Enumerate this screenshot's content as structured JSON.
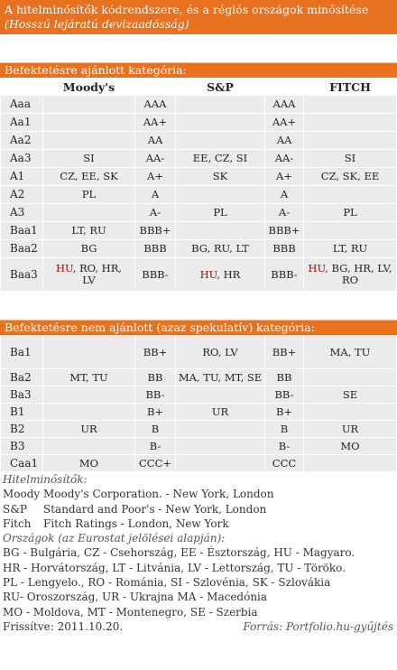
{
  "title": {
    "main": "A hitelminősítők kódrendszere, és a régiós országok minősítése",
    "sub": "(Hosszú lejáratú devizaadósság)"
  },
  "investment": {
    "header": "Befektetésre ajánlott kategória:",
    "columns": [
      "Moody's",
      "S&P",
      "FITCH"
    ],
    "rows": [
      {
        "m": "Aaa",
        "mc": "",
        "s": "AAA",
        "sc": "",
        "f": "AAA",
        "fc": ""
      },
      {
        "m": "Aa1",
        "mc": "",
        "s": "AA+",
        "sc": "",
        "f": "AA+",
        "fc": ""
      },
      {
        "m": "Aa2",
        "mc": "",
        "s": "AA",
        "sc": "",
        "f": "AA",
        "fc": ""
      },
      {
        "m": "Aa3",
        "mc": "SI",
        "s": "AA-",
        "sc": "EE, CZ, SI",
        "f": "AA-",
        "fc": "SI"
      },
      {
        "m": "A1",
        "mc": "CZ, EE, SK",
        "s": "A+",
        "sc": "SK",
        "f": "A+",
        "fc": "CZ, SK, EE"
      },
      {
        "m": "A2",
        "mc": "PL",
        "s": "A",
        "sc": "",
        "f": "A",
        "fc": ""
      },
      {
        "m": "A3",
        "mc": "",
        "s": "A-",
        "sc": "PL",
        "f": "A-",
        "fc": "PL"
      },
      {
        "m": "Baa1",
        "mc": "LT, RU",
        "s": "BBB+",
        "sc": "",
        "f": "BBB+",
        "fc": ""
      },
      {
        "m": "Baa2",
        "mc": "BG",
        "s": "BBB",
        "sc": "BG, RU, LT",
        "f": "BBB",
        "fc": "LT, RU"
      },
      {
        "m": "Baa3",
        "mc_red": "HU",
        "mc_rest": ", RO, HR,",
        "mc_line2": "LV",
        "s": "BBB-",
        "sc_red": "HU",
        "sc_rest": ", HR",
        "f": "BBB-",
        "fc_red": "HU",
        "fc_rest": ", BG, HR, LV,",
        "fc_line2": "RO"
      }
    ]
  },
  "speculative": {
    "header": "Befektetésre nem ajánlott (azaz spekulatív) kategória:",
    "rows": [
      {
        "m": "Ba1",
        "mc": "",
        "s": "BB+",
        "sc": "RO, LV",
        "f": "BB+",
        "fc": "MA, TU"
      },
      {
        "m": "Ba2",
        "mc": "MT, TU",
        "s": "BB",
        "sc": "MA, TU, MT, SE",
        "f": "BB",
        "fc": ""
      },
      {
        "m": "Ba3",
        "mc": "",
        "s": "BB-",
        "sc": "",
        "f": "BB-",
        "fc": "SE"
      },
      {
        "m": "B1",
        "mc": "",
        "s": "B+",
        "sc": "UR",
        "f": "B+",
        "fc": ""
      },
      {
        "m": "B2",
        "mc": "UR",
        "s": "B",
        "sc": "",
        "f": "B",
        "fc": "UR"
      },
      {
        "m": "B3",
        "mc": "",
        "s": "B-",
        "sc": "",
        "f": "B-",
        "fc": "MO"
      },
      {
        "m": "Caa1",
        "mc": "MO",
        "s": "CCC+",
        "sc": "",
        "f": "CCC",
        "fc": ""
      }
    ]
  },
  "notes": {
    "agencies_title": "Hitelminősítők:",
    "agencies": [
      {
        "k": "Moody",
        "v": "Moody's Corporation. - New York, London"
      },
      {
        "k": "S&P",
        "v": "Standard and Poor's  - New York, London"
      },
      {
        "k": "Fitch",
        "v": "Fitch Ratings - London, New York"
      }
    ],
    "countries_title": "Országok (az Eurostat jelölései alapján):",
    "countries": [
      "BG - Bulgária, CZ - Csehország, EE - Észtország, HU - Magyaro.",
      "HR - Horvátország, LT - Litvánia, LV - Lettország, TU - Törökо.",
      "PL - Lengyelo., RO - Románia, SI - Szlovénia, SK - Szlovákia",
      "RU- Oroszország, UR - Ukrajna MA - Macedónia",
      "MO - Moldova, MT - Montenegro, SE - Szerbia"
    ],
    "updated": "Frissítve: 2011.10.20.",
    "source": "Forrás: Portfolio.hu-gyűjtés"
  },
  "colors": {
    "accent": "#e8711f",
    "cell": "#ebebeb",
    "highlight": "#c00000"
  }
}
